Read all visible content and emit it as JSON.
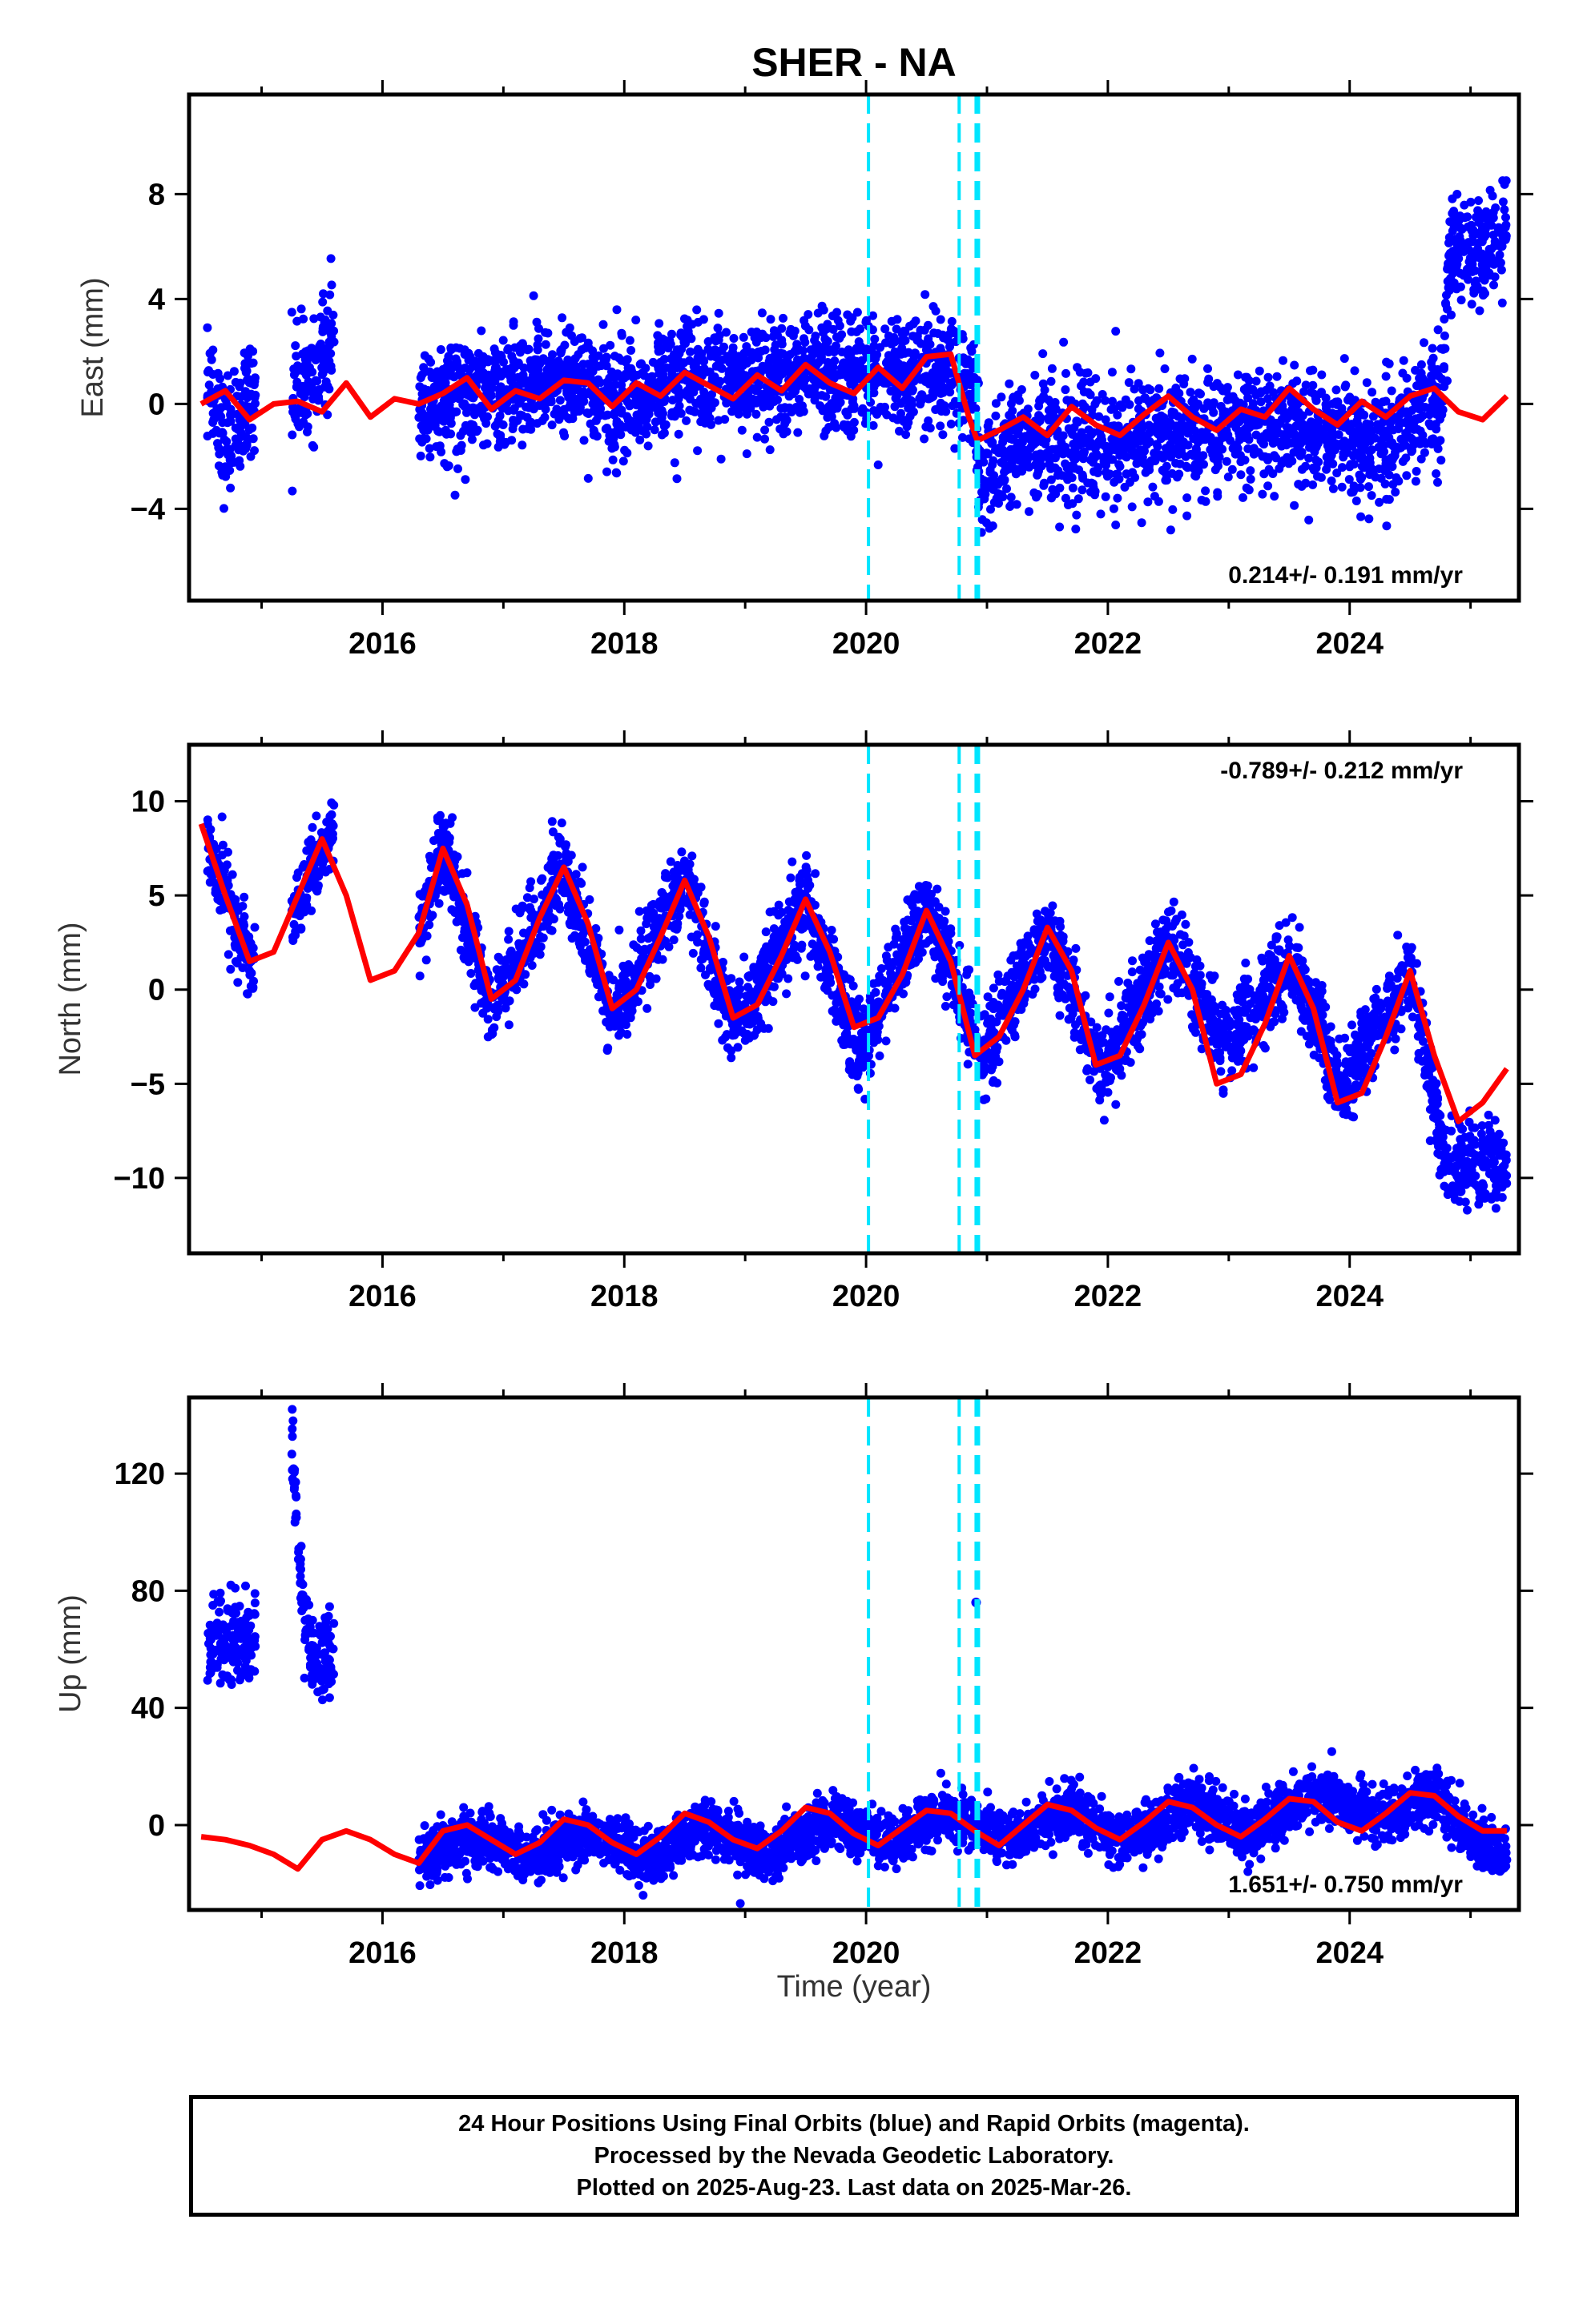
{
  "chart_data": {
    "type": "scatter",
    "title": "SHER - NA",
    "xlabel": "Time (year)",
    "xlim": [
      2014.4,
      2025.4
    ],
    "xticks": [
      2016,
      2018,
      2020,
      2022,
      2024
    ],
    "x_tick_labels": [
      "2016",
      "2018",
      "2020",
      "2022",
      "2024"
    ],
    "vertical_lines": [
      2020.02,
      2020.77,
      2020.91,
      2020.93
    ],
    "colors": {
      "points": "#0000ff",
      "fit": "#ff0000",
      "vlines": "#00e5ff"
    },
    "panels": [
      {
        "name": "east",
        "ylabel": "East (mm)",
        "ylim": [
          -7.5,
          11.8
        ],
        "yticks": [
          -4,
          0,
          4,
          8
        ],
        "y_tick_labels": [
          "−4",
          "0",
          "4",
          "8"
        ],
        "rate_label": "0.214+/- 0.191 mm/yr",
        "rate_position": "bottom-right",
        "data_segments": [
          [
            2014.55,
            2014.95
          ],
          [
            2015.25,
            2015.6
          ],
          [
            2016.3,
            2025.3
          ]
        ],
        "fit_curve": {
          "x": [
            2014.5,
            2014.7,
            2014.9,
            2015.1,
            2015.3,
            2015.5,
            2015.7,
            2015.9,
            2016.1,
            2016.3,
            2016.5,
            2016.7,
            2016.9,
            2017.1,
            2017.3,
            2017.5,
            2017.7,
            2017.9,
            2018.1,
            2018.3,
            2018.5,
            2018.7,
            2018.9,
            2019.1,
            2019.3,
            2019.5,
            2019.7,
            2019.9,
            2020.1,
            2020.3,
            2020.5,
            2020.7,
            2020.85,
            2020.92,
            2021.1,
            2021.3,
            2021.5,
            2021.7,
            2021.9,
            2022.1,
            2022.3,
            2022.5,
            2022.7,
            2022.9,
            2023.1,
            2023.3,
            2023.5,
            2023.7,
            2023.9,
            2024.1,
            2024.3,
            2024.5,
            2024.7,
            2024.9,
            2025.1,
            2025.3
          ],
          "y": [
            0.0,
            0.5,
            -0.6,
            0.0,
            0.1,
            -0.3,
            0.8,
            -0.5,
            0.2,
            0.0,
            0.4,
            1.0,
            -0.2,
            0.5,
            0.2,
            0.9,
            0.8,
            -0.1,
            0.8,
            0.3,
            1.2,
            0.7,
            0.2,
            1.1,
            0.5,
            1.5,
            0.8,
            0.4,
            1.4,
            0.6,
            1.8,
            1.9,
            -0.5,
            -1.4,
            -1.0,
            -0.5,
            -1.2,
            -0.1,
            -0.8,
            -1.2,
            -0.4,
            0.3,
            -0.5,
            -1.0,
            -0.2,
            -0.5,
            0.6,
            -0.2,
            -0.8,
            0.1,
            -0.5,
            0.3,
            0.6,
            -0.3,
            -0.6,
            0.3
          ]
        },
        "point_trend": {
          "x": [
            2014.55,
            2014.7,
            2014.95,
            2015.25,
            2015.4,
            2015.6,
            2016.3,
            2016.8,
            2017.5,
            2018.0,
            2018.5,
            2019.0,
            2019.5,
            2020.0,
            2020.5,
            2020.85,
            2020.95,
            2021.3,
            2021.8,
            2022.3,
            2022.8,
            2023.3,
            2023.8,
            2024.2,
            2024.5,
            2024.75,
            2024.85,
            2025.0,
            2025.3
          ],
          "y": [
            0.6,
            -1.5,
            0.8,
            0.5,
            0.9,
            2.6,
            0.0,
            0.3,
            1.0,
            0.0,
            1.0,
            0.7,
            1.2,
            0.9,
            1.3,
            1.0,
            -2.7,
            -1.5,
            -1.6,
            -1.2,
            -1.1,
            -0.8,
            -1.2,
            -1.5,
            -0.8,
            0.0,
            6.5,
            5.8,
            6.2
          ]
        }
      },
      {
        "name": "north",
        "ylabel": "North (mm)",
        "ylim": [
          -14,
          13
        ],
        "yticks": [
          -10,
          -5,
          0,
          5,
          10
        ],
        "y_tick_labels": [
          "−10",
          "−5",
          "0",
          "5",
          "10"
        ],
        "rate_label": "-0.789+/- 0.212 mm/yr",
        "rate_position": "top-right",
        "data_segments": [
          [
            2014.55,
            2014.95
          ],
          [
            2015.25,
            2015.6
          ],
          [
            2016.3,
            2025.3
          ]
        ],
        "fit_curve": {
          "x": [
            2014.5,
            2014.7,
            2014.9,
            2015.1,
            2015.3,
            2015.5,
            2015.7,
            2015.9,
            2016.1,
            2016.3,
            2016.5,
            2016.7,
            2016.9,
            2017.1,
            2017.3,
            2017.5,
            2017.7,
            2017.9,
            2018.1,
            2018.3,
            2018.5,
            2018.7,
            2018.9,
            2019.1,
            2019.3,
            2019.5,
            2019.7,
            2019.9,
            2020.1,
            2020.3,
            2020.5,
            2020.7,
            2020.9,
            2021.1,
            2021.3,
            2021.5,
            2021.7,
            2021.9,
            2022.1,
            2022.3,
            2022.5,
            2022.7,
            2022.9,
            2023.1,
            2023.3,
            2023.5,
            2023.7,
            2023.9,
            2024.1,
            2024.3,
            2024.5,
            2024.7,
            2024.9,
            2025.1,
            2025.3
          ],
          "y": [
            8.8,
            5.0,
            1.5,
            2.0,
            5.0,
            8.0,
            5.0,
            0.5,
            1.0,
            3.0,
            7.5,
            4.5,
            -0.5,
            0.5,
            3.8,
            6.5,
            3.5,
            -1.0,
            0.0,
            2.8,
            5.8,
            2.8,
            -1.5,
            -0.8,
            1.8,
            4.8,
            2.0,
            -2.0,
            -1.5,
            0.8,
            4.2,
            1.5,
            -3.5,
            -2.5,
            0.0,
            3.3,
            1.0,
            -4.0,
            -3.5,
            -0.8,
            2.5,
            0.0,
            -5.0,
            -4.5,
            -1.8,
            1.8,
            -1.0,
            -6.0,
            -5.5,
            -2.5,
            1.0,
            -3.5,
            -7.0,
            -6.0,
            -4.2
          ]
        },
        "point_trend": {
          "x": [
            2014.55,
            2014.75,
            2014.95,
            2015.3,
            2015.6,
            2016.3,
            2016.5,
            2016.9,
            2017.5,
            2017.9,
            2018.5,
            2018.9,
            2019.5,
            2019.95,
            2020.5,
            2020.95,
            2021.5,
            2021.95,
            2022.5,
            2022.95,
            2023.5,
            2023.95,
            2024.5,
            2024.8,
            2025.3
          ],
          "y": [
            8.0,
            4.0,
            1.0,
            4.5,
            8.5,
            3.0,
            7.5,
            -1.0,
            6.5,
            -1.5,
            6.0,
            -2.0,
            4.5,
            -3.5,
            4.5,
            -3.5,
            3.0,
            -4.5,
            2.5,
            -3.0,
            1.5,
            -5.0,
            1.0,
            -9.5,
            -9.0
          ]
        }
      },
      {
        "name": "up",
        "ylabel": "Up (mm)",
        "ylim": [
          -29,
          146
        ],
        "yticks": [
          0,
          40,
          80,
          120
        ],
        "y_tick_labels": [
          "0",
          "40",
          "80",
          "120"
        ],
        "rate_label": "1.651+/- 0.750 mm/yr",
        "rate_position": "bottom-right",
        "data_segments": [
          [
            2014.55,
            2014.95
          ],
          [
            2015.25,
            2015.6
          ],
          [
            2016.3,
            2025.3
          ]
        ],
        "fit_curve": {
          "x": [
            2014.5,
            2014.7,
            2014.9,
            2015.1,
            2015.3,
            2015.5,
            2015.7,
            2015.9,
            2016.1,
            2016.3,
            2016.5,
            2016.7,
            2016.9,
            2017.1,
            2017.3,
            2017.5,
            2017.7,
            2017.9,
            2018.1,
            2018.3,
            2018.5,
            2018.7,
            2018.9,
            2019.1,
            2019.3,
            2019.5,
            2019.7,
            2019.9,
            2020.1,
            2020.3,
            2020.5,
            2020.7,
            2020.9,
            2021.1,
            2021.3,
            2021.5,
            2021.7,
            2021.9,
            2022.1,
            2022.3,
            2022.5,
            2022.7,
            2022.9,
            2023.1,
            2023.3,
            2023.5,
            2023.7,
            2023.9,
            2024.1,
            2024.3,
            2024.5,
            2024.7,
            2024.9,
            2025.1,
            2025.3
          ],
          "y": [
            -4,
            -5,
            -7,
            -10,
            -15,
            -5,
            -2,
            -5,
            -10,
            -13,
            -2,
            0,
            -5,
            -10,
            -6,
            2,
            0,
            -6,
            -10,
            -4,
            4,
            1,
            -5,
            -8,
            -2,
            6,
            4,
            -3,
            -7,
            -1,
            5,
            4,
            -2,
            -7,
            0,
            7,
            5,
            -1,
            -5,
            1,
            8,
            6,
            0,
            -4,
            2,
            9,
            8,
            1,
            -2,
            4,
            11,
            10,
            3,
            -2,
            -2
          ]
        },
        "point_trend": {
          "x": [
            2014.55,
            2014.75,
            2014.95,
            2015.25,
            2015.35,
            2015.45,
            2015.6,
            2016.3,
            2016.8,
            2017.2,
            2017.7,
            2018.2,
            2018.7,
            2019.2,
            2019.7,
            2020.2,
            2020.7,
            2021.2,
            2021.7,
            2022.2,
            2022.7,
            2023.2,
            2023.7,
            2024.2,
            2024.7,
            2025.0,
            2025.3
          ],
          "y": [
            62,
            62,
            65,
            128,
            72,
            55,
            58,
            -12,
            -3,
            -12,
            -2,
            -12,
            0,
            -10,
            2,
            -5,
            5,
            -5,
            5,
            -5,
            8,
            -3,
            10,
            3,
            10,
            -5,
            -10
          ]
        },
        "outliers": [
          {
            "x": 2020.91,
            "y": 76
          }
        ]
      }
    ]
  },
  "footer": {
    "line1": "24 Hour Positions Using Final Orbits (blue) and Rapid Orbits (magenta).",
    "line2": "Processed by the Nevada Geodetic Laboratory.",
    "line3": "Plotted on 2025-Aug-23. Last data on 2025-Mar-26."
  }
}
